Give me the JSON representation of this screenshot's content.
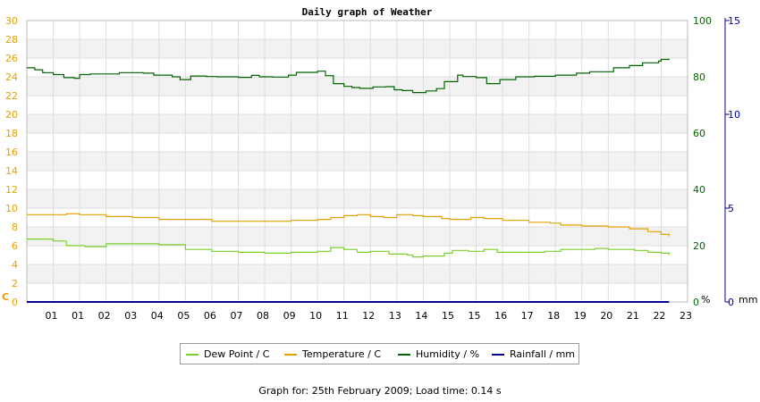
{
  "chart_data": {
    "type": "line",
    "title": "Daily graph of Weather",
    "x_ticks": [
      "01",
      "01",
      "02",
      "03",
      "04",
      "05",
      "06",
      "07",
      "08",
      "09",
      "10",
      "11",
      "12",
      "13",
      "14",
      "15",
      "15",
      "16",
      "17",
      "18",
      "19",
      "20",
      "21",
      "22",
      "23"
    ],
    "axes": {
      "left": {
        "unit_label": "C",
        "min": 0,
        "max": 30,
        "step": 2,
        "color": "#e6a000"
      },
      "right1": {
        "unit_label": "%",
        "min": 0,
        "max": 100,
        "step": 20,
        "color": "#006400"
      },
      "right2": {
        "unit_label": "mm",
        "min": 0,
        "max": 15,
        "step": 5,
        "color": "#000099"
      }
    },
    "grid": true,
    "legend_position": "bottom",
    "series": [
      {
        "name": "Dew Point / C",
        "axis": "left",
        "color": "#7ad02a",
        "points": [
          [
            0,
            6.7
          ],
          [
            1,
            6.5
          ],
          [
            1.5,
            6.0
          ],
          [
            2.2,
            5.9
          ],
          [
            3,
            6.2
          ],
          [
            4,
            6.2
          ],
          [
            5,
            6.1
          ],
          [
            6,
            5.6
          ],
          [
            7,
            5.4
          ],
          [
            8,
            5.3
          ],
          [
            9,
            5.2
          ],
          [
            10,
            5.3
          ],
          [
            11,
            5.4
          ],
          [
            11.5,
            5.8
          ],
          [
            12,
            5.6
          ],
          [
            12.5,
            5.3
          ],
          [
            13,
            5.4
          ],
          [
            13.7,
            5.1
          ],
          [
            14.4,
            5.0
          ],
          [
            14.6,
            4.8
          ],
          [
            15,
            4.9
          ],
          [
            15.8,
            5.2
          ],
          [
            16.1,
            5.5
          ],
          [
            16.7,
            5.4
          ],
          [
            17.3,
            5.6
          ],
          [
            17.8,
            5.3
          ],
          [
            18.7,
            5.3
          ],
          [
            19.6,
            5.4
          ],
          [
            20.2,
            5.6
          ],
          [
            21,
            5.6
          ],
          [
            21.5,
            5.7
          ],
          [
            22,
            5.6
          ],
          [
            23,
            5.5
          ],
          [
            23.5,
            5.3
          ],
          [
            24,
            5.2
          ],
          [
            24.3,
            5.0
          ]
        ]
      },
      {
        "name": "Temperature / C",
        "axis": "left",
        "color": "#e6a000",
        "points": [
          [
            0,
            9.3
          ],
          [
            1,
            9.3
          ],
          [
            1.5,
            9.4
          ],
          [
            2,
            9.3
          ],
          [
            3,
            9.1
          ],
          [
            4,
            9.0
          ],
          [
            5,
            8.8
          ],
          [
            6,
            8.8
          ],
          [
            7,
            8.6
          ],
          [
            8,
            8.6
          ],
          [
            9,
            8.6
          ],
          [
            10,
            8.7
          ],
          [
            11,
            8.8
          ],
          [
            11.5,
            9.0
          ],
          [
            12,
            9.2
          ],
          [
            12.5,
            9.3
          ],
          [
            13,
            9.1
          ],
          [
            13.5,
            9.0
          ],
          [
            14,
            9.3
          ],
          [
            14.6,
            9.2
          ],
          [
            15,
            9.1
          ],
          [
            15.7,
            8.9
          ],
          [
            16,
            8.8
          ],
          [
            16.8,
            9.0
          ],
          [
            17.3,
            8.9
          ],
          [
            18,
            8.7
          ],
          [
            19,
            8.5
          ],
          [
            19.8,
            8.4
          ],
          [
            20.2,
            8.2
          ],
          [
            21,
            8.1
          ],
          [
            22,
            8.0
          ],
          [
            22.8,
            7.8
          ],
          [
            23.5,
            7.5
          ],
          [
            24,
            7.2
          ],
          [
            24.3,
            7.0
          ]
        ]
      },
      {
        "name": "Humidity / %",
        "axis": "right1",
        "color": "#006400",
        "points": [
          [
            0,
            83.2
          ],
          [
            0.3,
            82.5
          ],
          [
            0.6,
            81.5
          ],
          [
            1,
            80.8
          ],
          [
            1.4,
            79.7
          ],
          [
            1.8,
            79.5
          ],
          [
            2,
            80.8
          ],
          [
            2.4,
            81.0
          ],
          [
            3.5,
            81.5
          ],
          [
            4.4,
            81.3
          ],
          [
            4.8,
            80.6
          ],
          [
            5.5,
            80.0
          ],
          [
            5.8,
            79.0
          ],
          [
            6.2,
            80.3
          ],
          [
            6.8,
            80.1
          ],
          [
            7.2,
            80.0
          ],
          [
            8,
            79.8
          ],
          [
            8.5,
            80.5
          ],
          [
            8.8,
            80.0
          ],
          [
            9.3,
            79.9
          ],
          [
            9.9,
            80.6
          ],
          [
            10.2,
            81.6
          ],
          [
            11,
            82.0
          ],
          [
            11.3,
            80.4
          ],
          [
            11.6,
            77.6
          ],
          [
            12,
            76.6
          ],
          [
            12.3,
            76.2
          ],
          [
            12.6,
            75.9
          ],
          [
            13.1,
            76.4
          ],
          [
            13.6,
            76.5
          ],
          [
            13.9,
            75.4
          ],
          [
            14.2,
            75.1
          ],
          [
            14.6,
            74.4
          ],
          [
            15.1,
            75.0
          ],
          [
            15.5,
            75.8
          ],
          [
            15.8,
            78.3
          ],
          [
            16.3,
            80.6
          ],
          [
            16.5,
            80.1
          ],
          [
            17,
            79.7
          ],
          [
            17.4,
            77.6
          ],
          [
            17.9,
            79.0
          ],
          [
            18.5,
            80.0
          ],
          [
            19.2,
            80.2
          ],
          [
            20,
            80.6
          ],
          [
            20.8,
            81.3
          ],
          [
            21.3,
            81.8
          ],
          [
            22.2,
            83.2
          ],
          [
            22.8,
            84.0
          ],
          [
            23.3,
            85.0
          ],
          [
            23.9,
            85.6
          ],
          [
            24,
            86.2
          ],
          [
            24.3,
            86.4
          ]
        ]
      },
      {
        "name": "Rainfall / mm",
        "axis": "right2",
        "color": "#000099",
        "points": [
          [
            0,
            0
          ],
          [
            24.3,
            0
          ]
        ]
      }
    ]
  },
  "footer": "Graph for: 25th February 2009; Load time: 0.14 s"
}
